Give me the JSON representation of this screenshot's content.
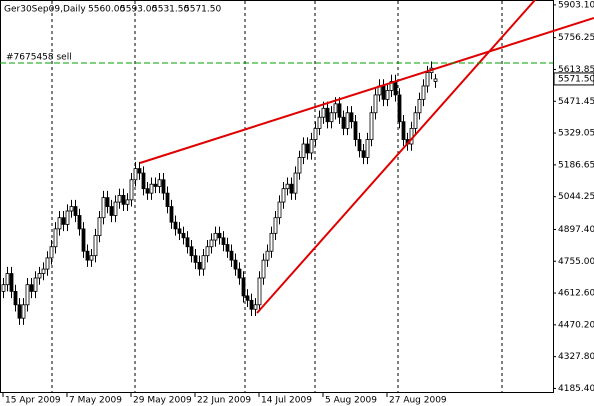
{
  "chart_data": {
    "type": "candlestick",
    "title": "Ger30Sep09,Daily",
    "ohlc_labels": [
      "5560.00",
      "5593.00",
      "5531.50",
      "5571.50"
    ],
    "order_label": "#7675458 sell",
    "order_price": 5643,
    "last_price_label": "5571.50",
    "ylim": [
      4165,
      5925
    ],
    "yticks": [
      {
        "value": 5903.1,
        "label": "5903.10"
      },
      {
        "value": 5756.25,
        "label": "5756.25"
      },
      {
        "value": 5613.85,
        "label": "5613.85"
      },
      {
        "value": 5471.45,
        "label": "5471.45"
      },
      {
        "value": 5329.05,
        "label": "5329.05"
      },
      {
        "value": 5186.65,
        "label": "5186.65"
      },
      {
        "value": 5044.25,
        "label": "5044.25"
      },
      {
        "value": 4897.4,
        "label": "4897.40"
      },
      {
        "value": 4755,
        "label": "4755.00"
      },
      {
        "value": 4612.6,
        "label": "4612.60"
      },
      {
        "value": 4470.2,
        "label": "4470.20"
      },
      {
        "value": 4327.8,
        "label": "4327.80"
      },
      {
        "value": 4185.4,
        "label": "4185.40"
      }
    ],
    "categories": [
      "15 Apr 2009",
      null,
      null,
      null,
      null,
      null,
      null,
      null,
      null,
      null,
      null,
      null,
      null,
      null,
      null,
      null,
      "7 May 2009",
      null,
      null,
      null,
      null,
      null,
      null,
      null,
      null,
      null,
      null,
      null,
      null,
      null,
      null,
      null,
      "29 May 2009",
      null,
      null,
      null,
      null,
      null,
      null,
      null,
      null,
      null,
      null,
      null,
      null,
      null,
      null,
      null,
      "22 Jun 2009",
      null,
      null,
      null,
      null,
      null,
      null,
      null,
      null,
      null,
      null,
      null,
      null,
      null,
      null,
      null,
      "14 Jul 2009",
      null,
      null,
      null,
      null,
      null,
      null,
      null,
      null,
      null,
      null,
      null,
      null,
      null,
      null,
      null,
      "5 Aug 2009",
      null,
      null,
      null,
      null,
      null,
      null,
      null,
      null,
      null,
      null,
      null,
      null,
      null,
      null,
      null,
      "27 Aug 2009",
      null,
      null,
      null,
      null,
      null,
      null,
      null,
      null,
      null,
      null,
      null,
      null
    ],
    "open": [
      4620,
      4650,
      4700,
      4620,
      4560,
      4500,
      4560,
      4650,
      4620,
      4680,
      4700,
      4720,
      4770,
      4820,
      4900,
      4950,
      4920,
      4980,
      5000,
      4960,
      4900,
      4800,
      4760,
      4780,
      4870,
      4950,
      5040,
      5000,
      4960,
      5020,
      5050,
      5010,
      5030,
      5120,
      5170,
      5150,
      5080,
      5060,
      5100,
      5090,
      5120,
      5060,
      5000,
      4930,
      4900,
      4880,
      4860,
      4820,
      4780,
      4750,
      4720,
      4780,
      4820,
      4850,
      4880,
      4860,
      4830,
      4800,
      4760,
      4720,
      4680,
      4600,
      4580,
      4540,
      4560,
      4680,
      4760,
      4800,
      4880,
      4950,
      5020,
      5080,
      5100,
      5060,
      5150,
      5220,
      5280,
      5240,
      5300,
      5350,
      5400,
      5440,
      5380,
      5420,
      5460,
      5400,
      5350,
      5420,
      5380,
      5300,
      5250,
      5220,
      5300,
      5420,
      5500,
      5540,
      5480,
      5520,
      5560,
      5500,
      5380,
      5300,
      5280,
      5350,
      5420,
      5480,
      5540,
      5600,
      5560
    ],
    "high": [
      4680,
      4730,
      4730,
      4650,
      4590,
      4590,
      4680,
      4680,
      4710,
      4730,
      4750,
      4800,
      4850,
      4930,
      4980,
      4980,
      5010,
      5030,
      5030,
      4990,
      4930,
      4830,
      4810,
      4900,
      4980,
      5070,
      5070,
      5030,
      5050,
      5080,
      5080,
      5060,
      5150,
      5200,
      5200,
      5180,
      5110,
      5130,
      5130,
      5150,
      5150,
      5090,
      5030,
      4960,
      4930,
      4910,
      4890,
      4850,
      4810,
      4780,
      4810,
      4850,
      4880,
      4910,
      4910,
      4890,
      4860,
      4830,
      4790,
      4750,
      4710,
      4630,
      4610,
      4590,
      4710,
      4790,
      4830,
      4910,
      4980,
      5050,
      5110,
      5130,
      5130,
      5180,
      5250,
      5310,
      5310,
      5330,
      5380,
      5430,
      5470,
      5470,
      5450,
      5490,
      5490,
      5430,
      5450,
      5450,
      5410,
      5330,
      5280,
      5330,
      5450,
      5530,
      5570,
      5570,
      5550,
      5590,
      5590,
      5530,
      5410,
      5330,
      5380,
      5450,
      5510,
      5570,
      5630,
      5650,
      5593
    ],
    "low": [
      4590,
      4620,
      4590,
      4530,
      4470,
      4470,
      4530,
      4590,
      4590,
      4650,
      4670,
      4690,
      4740,
      4790,
      4870,
      4890,
      4890,
      4950,
      4930,
      4870,
      4770,
      4730,
      4730,
      4750,
      4840,
      4920,
      4970,
      4930,
      4930,
      4990,
      4980,
      4980,
      5000,
      5090,
      5120,
      5050,
      5030,
      5030,
      5060,
      5060,
      5030,
      4970,
      4900,
      4870,
      4850,
      4830,
      4790,
      4750,
      4720,
      4690,
      4690,
      4750,
      4790,
      4820,
      4830,
      4800,
      4770,
      4730,
      4690,
      4650,
      4570,
      4550,
      4510,
      4510,
      4530,
      4650,
      4730,
      4770,
      4850,
      4920,
      4990,
      5050,
      5030,
      5030,
      5120,
      5190,
      5210,
      5210,
      5270,
      5320,
      5370,
      5350,
      5350,
      5390,
      5370,
      5320,
      5320,
      5350,
      5270,
      5220,
      5190,
      5190,
      5270,
      5390,
      5470,
      5450,
      5450,
      5490,
      5470,
      5350,
      5270,
      5250,
      5250,
      5320,
      5390,
      5450,
      5510,
      5570,
      5531.5
    ],
    "close": [
      4650,
      4700,
      4620,
      4560,
      4500,
      4560,
      4650,
      4620,
      4680,
      4700,
      4720,
      4770,
      4820,
      4900,
      4950,
      4920,
      4980,
      5000,
      4960,
      4900,
      4800,
      4760,
      4780,
      4870,
      4950,
      5040,
      5000,
      4960,
      5020,
      5050,
      5010,
      5030,
      5120,
      5170,
      5150,
      5080,
      5060,
      5100,
      5090,
      5120,
      5060,
      5000,
      4930,
      4900,
      4880,
      4860,
      4820,
      4780,
      4750,
      4720,
      4780,
      4820,
      4850,
      4880,
      4860,
      4830,
      4800,
      4760,
      4720,
      4680,
      4600,
      4580,
      4540,
      4560,
      4680,
      4760,
      4800,
      4880,
      4950,
      5020,
      5080,
      5100,
      5060,
      5150,
      5220,
      5280,
      5240,
      5300,
      5350,
      5400,
      5440,
      5380,
      5420,
      5460,
      5400,
      5350,
      5420,
      5380,
      5300,
      5250,
      5220,
      5300,
      5420,
      5500,
      5540,
      5480,
      5520,
      5560,
      5500,
      5380,
      5300,
      5280,
      5350,
      5420,
      5480,
      5540,
      5600,
      5620,
      5571.5
    ],
    "up_color": "#ffffff",
    "down_color": "#000000",
    "order_color": "#00a000"
  }
}
